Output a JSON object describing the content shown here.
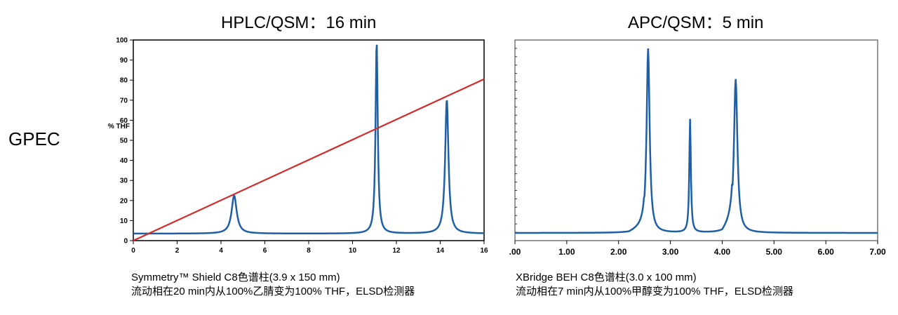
{
  "row_label": "GPEC",
  "left_panel": {
    "title": "HPLC/QSM：16 min",
    "caption_line1": "Symmetry™ Shield C8色谱柱(3.9 x 150 mm)",
    "caption_line2": "流动相在20 min内从100%乙腈变为100% THF，ELSD检测器"
  },
  "right_panel": {
    "title": "APC/QSM：5 min",
    "caption_line1": "XBridge BEH C8色谱柱(3.0 x 100 mm)",
    "caption_line2": "流动相在7 min内从100%甲醇变为100% THF，ELSD检测器"
  },
  "colors": {
    "trace": "#1f5fa6",
    "gradient": "#d42a2a",
    "axis": "#000000"
  },
  "chart_data": [
    {
      "type": "line",
      "ylabel": "% THF",
      "xlim": [
        0,
        16
      ],
      "ylim": [
        0,
        100
      ],
      "x_ticks": [
        "0",
        "2",
        "4",
        "6",
        "8",
        "10",
        "12",
        "14",
        "16"
      ],
      "y_ticks": [
        "0",
        "10",
        "20",
        "30",
        "40",
        "50",
        "60",
        "70",
        "80",
        "90",
        "100"
      ],
      "grid": false,
      "baseline": 3.5,
      "peaks": [
        {
          "x": 4.6,
          "y": 22.5
        },
        {
          "x": 11.1,
          "y": 99.5
        },
        {
          "x": 14.3,
          "y": 70.5
        }
      ],
      "gradient_line": {
        "x": [
          0,
          16
        ],
        "y": [
          0,
          80.5
        ]
      }
    },
    {
      "type": "line",
      "xlim": [
        0,
        7
      ],
      "x_ticks": [
        ".00",
        "1.00",
        "2.00",
        "3.00",
        "4.00",
        "5.00",
        "6.00",
        "7.00"
      ],
      "y_ticks": [],
      "grid": false,
      "baseline": 4,
      "peaks": [
        {
          "x": 2.57,
          "y": 100
        },
        {
          "x": 3.38,
          "y": 63
        },
        {
          "x": 4.26,
          "y": 84
        }
      ]
    }
  ]
}
